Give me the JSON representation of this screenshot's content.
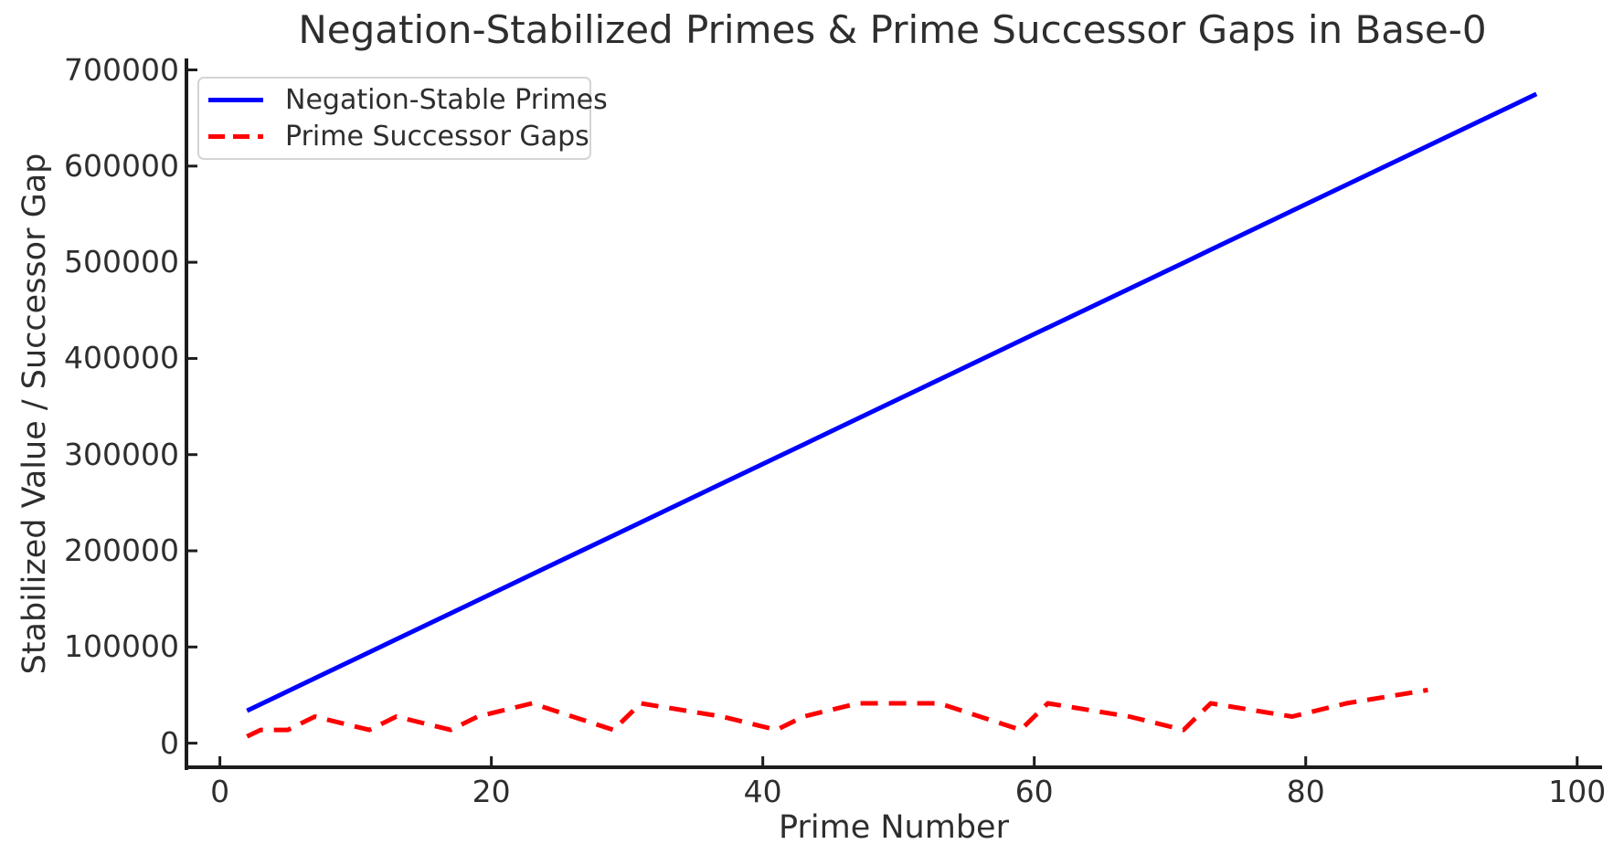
{
  "title": "Negation-Stabilized Primes & Prime Successor Gaps in Base-0",
  "axes": {
    "xlabel": "Prime Number",
    "ylabel": "Stabilized Value / Successor Gap",
    "x_ticks": [
      0,
      20,
      40,
      60,
      80,
      100
    ],
    "y_ticks": [
      0,
      100000,
      200000,
      300000,
      400000,
      500000,
      600000,
      700000
    ],
    "xlim": [
      -2.6,
      101.7
    ],
    "ylim": [
      -26000,
      710000
    ]
  },
  "legend": {
    "position": "upper left",
    "items": [
      {
        "label": "Negation-Stable Primes",
        "color": "#0000ff",
        "style": "solid"
      },
      {
        "label": "Prime Successor Gaps",
        "color": "#ff0000",
        "style": "dashed"
      }
    ]
  },
  "chart_data": {
    "type": "line",
    "title": "Negation-Stabilized Primes & Prime Successor Gaps in Base-0",
    "xlabel": "Prime Number",
    "ylabel": "Stabilized Value / Successor Gap",
    "xlim": [
      -2.6,
      101.7
    ],
    "ylim": [
      -26000,
      710000
    ],
    "grid": false,
    "legend_position": "upper left",
    "series": [
      {
        "name": "Negation-Stable Primes",
        "color": "#0000ff",
        "line_style": "solid",
        "line_width": 5,
        "x": [
          2,
          3,
          5,
          7,
          11,
          13,
          17,
          19,
          23,
          29,
          31,
          37,
          41,
          43,
          47,
          53,
          59,
          61,
          67,
          71,
          73,
          79,
          83,
          89,
          97
        ],
        "y": [
          33750,
          40500,
          54000,
          67500,
          94500,
          108000,
          135000,
          148500,
          175500,
          216000,
          229500,
          270000,
          297000,
          310500,
          337500,
          378000,
          418500,
          432000,
          472500,
          499500,
          513000,
          553500,
          580500,
          621000,
          675000
        ]
      },
      {
        "name": "Prime Successor Gaps",
        "color": "#ff0000",
        "line_style": "dashed",
        "line_width": 5,
        "x": [
          2,
          3,
          5,
          7,
          11,
          13,
          17,
          19,
          23,
          29,
          31,
          37,
          41,
          43,
          47,
          53,
          59,
          61,
          67,
          71,
          73,
          79,
          83,
          89
        ],
        "y": [
          6907,
          13814,
          13814,
          27628,
          13814,
          27628,
          13814,
          27628,
          41442,
          13814,
          41442,
          27628,
          13814,
          27628,
          41442,
          41442,
          13814,
          41442,
          27628,
          13814,
          41442,
          27628,
          41442,
          55256
        ]
      }
    ]
  },
  "colors": {
    "blue_line": "#0000ff",
    "red_line": "#ff0000",
    "text": "#2e2e2e",
    "spine": "#1c1c1c",
    "legend_border": "#d4d4d4",
    "background": "#ffffff"
  }
}
